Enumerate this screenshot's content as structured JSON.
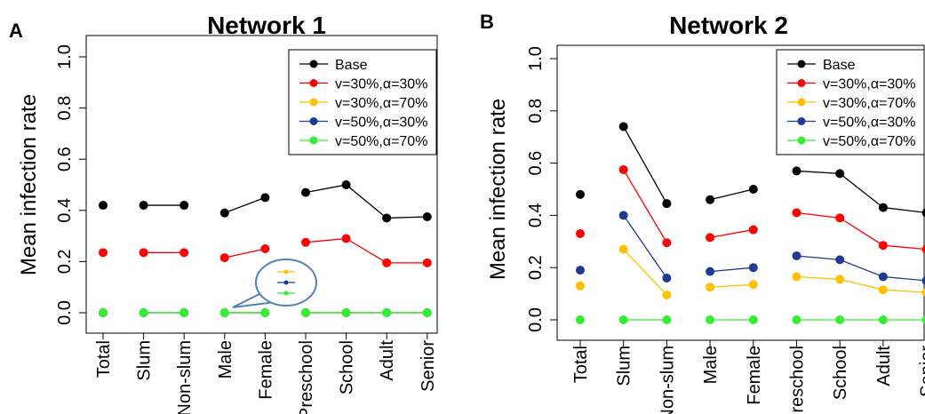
{
  "panels": [
    {
      "letter": "A"
    },
    {
      "letter": "B"
    }
  ],
  "chart_data": [
    {
      "type": "line",
      "title": "Network 1",
      "ylabel": "Mean infection rate",
      "xlabel": "",
      "ylim": [
        0,
        1.0
      ],
      "yticks": [
        "0.0",
        "0.2",
        "0.4",
        "0.6",
        "0.8",
        "1.0"
      ],
      "categories": [
        "Total",
        "Slum",
        "Non-slum",
        "Male",
        "Female",
        "Preschool",
        "School",
        "Adult",
        "Senior"
      ],
      "segments": [
        [
          0
        ],
        [
          1,
          2
        ],
        [
          3,
          4
        ],
        [
          5,
          6,
          7,
          8
        ]
      ],
      "legend": "top-right",
      "series": [
        {
          "name": "Base",
          "color": "#000000",
          "values": [
            0.42,
            0.42,
            0.42,
            0.39,
            0.45,
            0.47,
            0.5,
            0.37,
            0.375
          ]
        },
        {
          "name": "v=30%,α=30%",
          "color": "#ff0000",
          "values": [
            0.235,
            0.235,
            0.235,
            0.215,
            0.25,
            0.275,
            0.29,
            0.195,
            0.195
          ]
        },
        {
          "name": "v=30%,α=70%",
          "color": "#ffc000",
          "values": [
            0,
            0,
            0,
            0,
            0,
            0,
            0,
            0,
            0
          ]
        },
        {
          "name": "v=50%,α=30%",
          "color": "#1f3a93",
          "values": [
            0,
            0,
            0,
            0,
            0,
            0,
            0,
            0,
            0
          ]
        },
        {
          "name": "v=50%,α=70%",
          "color": "#33ee33",
          "values": [
            0,
            0,
            0,
            0,
            0,
            0,
            0,
            0,
            0
          ]
        }
      ]
    },
    {
      "type": "line",
      "title": "Network 2",
      "ylabel": "Mean infection rate",
      "xlabel": "",
      "ylim": [
        0,
        1.0
      ],
      "yticks": [
        "0.0",
        "0.2",
        "0.4",
        "0.6",
        "0.8",
        "1.0"
      ],
      "categories": [
        "Total",
        "Slum",
        "Non-slum",
        "Male",
        "Female",
        "Preschool",
        "School",
        "Adult",
        "Senior"
      ],
      "segments": [
        [
          0
        ],
        [
          1,
          2
        ],
        [
          3,
          4
        ],
        [
          5,
          6,
          7,
          8
        ]
      ],
      "legend": "top-right",
      "series": [
        {
          "name": "Base",
          "color": "#000000",
          "values": [
            0.48,
            0.74,
            0.445,
            0.46,
            0.5,
            0.57,
            0.56,
            0.43,
            0.41
          ]
        },
        {
          "name": "v=30%,α=30%",
          "color": "#ff0000",
          "values": [
            0.33,
            0.575,
            0.295,
            0.315,
            0.345,
            0.41,
            0.39,
            0.285,
            0.27
          ]
        },
        {
          "name": "v=30%,α=70%",
          "color": "#ffc000",
          "values": [
            0.13,
            0.27,
            0.095,
            0.125,
            0.135,
            0.165,
            0.155,
            0.115,
            0.105
          ]
        },
        {
          "name": "v=50%,α=30%",
          "color": "#1f3a93",
          "values": [
            0.19,
            0.4,
            0.16,
            0.185,
            0.2,
            0.245,
            0.23,
            0.165,
            0.15
          ]
        },
        {
          "name": "v=50%,α=70%",
          "color": "#33ee33",
          "values": [
            0,
            0,
            0,
            0,
            0,
            0,
            0,
            0,
            0
          ]
        }
      ]
    }
  ]
}
